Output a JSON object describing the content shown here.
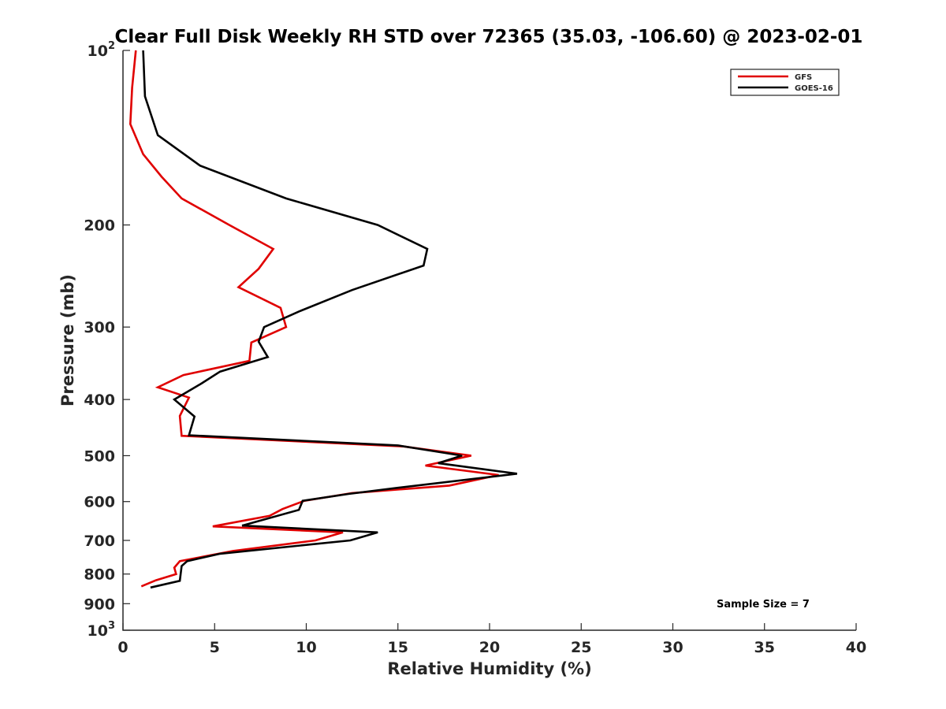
{
  "chart_data": {
    "type": "line",
    "title": "Clear Full Disk Weekly RH STD over 72365 (35.03, -106.60) @ 2023-02-01",
    "xlabel": "Relative Humidity (%)",
    "ylabel": "Pressure (mb)",
    "xlim": [
      0,
      40
    ],
    "ylim": [
      100,
      1000
    ],
    "y_scale": "log",
    "y_reversed": true,
    "grid": false,
    "legend_position": "top-right",
    "x_ticks": [
      0,
      5,
      10,
      15,
      20,
      25,
      30,
      35,
      40
    ],
    "x_tick_labels": [
      "0",
      "5",
      "10",
      "15",
      "20",
      "25",
      "30",
      "35",
      "40"
    ],
    "y_ticks": [
      100,
      200,
      300,
      400,
      500,
      600,
      700,
      800,
      900,
      1000
    ],
    "y_tick_labels": [
      {
        "base": "10",
        "exp": "2"
      },
      {
        "base": "200"
      },
      {
        "base": "300"
      },
      {
        "base": "400"
      },
      {
        "base": "500"
      },
      {
        "base": "600"
      },
      {
        "base": "700"
      },
      {
        "base": "800"
      },
      {
        "base": "900"
      },
      {
        "base": "10",
        "exp": "3"
      }
    ],
    "series": [
      {
        "name": "GFS",
        "color": "#e00000",
        "points": [
          [
            0.7,
            100
          ],
          [
            0.5,
            116
          ],
          [
            0.4,
            134
          ],
          [
            1.1,
            151
          ],
          [
            2.1,
            165
          ],
          [
            3.2,
            180
          ],
          [
            5.8,
            200
          ],
          [
            8.2,
            220
          ],
          [
            7.4,
            238
          ],
          [
            6.3,
            256
          ],
          [
            8.6,
            278
          ],
          [
            8.9,
            300
          ],
          [
            7.0,
            319
          ],
          [
            6.9,
            343
          ],
          [
            3.3,
            363
          ],
          [
            1.9,
            381
          ],
          [
            3.6,
            397
          ],
          [
            3.1,
            427
          ],
          [
            3.2,
            462
          ],
          [
            15.3,
            482
          ],
          [
            19.0,
            500
          ],
          [
            16.5,
            520
          ],
          [
            20.5,
            540
          ],
          [
            17.8,
            563
          ],
          [
            12.5,
            580
          ],
          [
            9.9,
            598
          ],
          [
            8.7,
            618
          ],
          [
            8.0,
            635
          ],
          [
            4.9,
            662
          ],
          [
            12.0,
            678
          ],
          [
            10.5,
            700
          ],
          [
            6.0,
            730
          ],
          [
            3.1,
            760
          ],
          [
            2.8,
            780
          ],
          [
            2.9,
            800
          ],
          [
            1.8,
            820
          ],
          [
            1.0,
            840
          ]
        ]
      },
      {
        "name": "GOES-16",
        "color": "#000000",
        "points": [
          [
            1.1,
            100
          ],
          [
            1.2,
            120
          ],
          [
            1.9,
            140
          ],
          [
            4.2,
            158
          ],
          [
            8.9,
            180
          ],
          [
            13.9,
            200
          ],
          [
            16.6,
            220
          ],
          [
            16.4,
            235
          ],
          [
            12.5,
            259
          ],
          [
            9.6,
            282
          ],
          [
            7.7,
            300
          ],
          [
            7.4,
            318
          ],
          [
            7.9,
            338
          ],
          [
            5.3,
            358
          ],
          [
            4.3,
            375
          ],
          [
            2.8,
            400
          ],
          [
            3.9,
            428
          ],
          [
            3.6,
            461
          ],
          [
            15.0,
            480
          ],
          [
            18.5,
            500
          ],
          [
            17.2,
            515
          ],
          [
            21.5,
            537
          ],
          [
            15.0,
            568
          ],
          [
            12.3,
            582
          ],
          [
            9.8,
            598
          ],
          [
            9.6,
            620
          ],
          [
            6.5,
            660
          ],
          [
            13.9,
            678
          ],
          [
            12.4,
            700
          ],
          [
            5.3,
            738
          ],
          [
            3.5,
            760
          ],
          [
            3.2,
            775
          ],
          [
            3.1,
            822
          ],
          [
            1.5,
            844
          ]
        ]
      }
    ],
    "annotations": [
      {
        "text": "Sample Size = 7",
        "x": 35,
        "y": 900
      }
    ]
  }
}
